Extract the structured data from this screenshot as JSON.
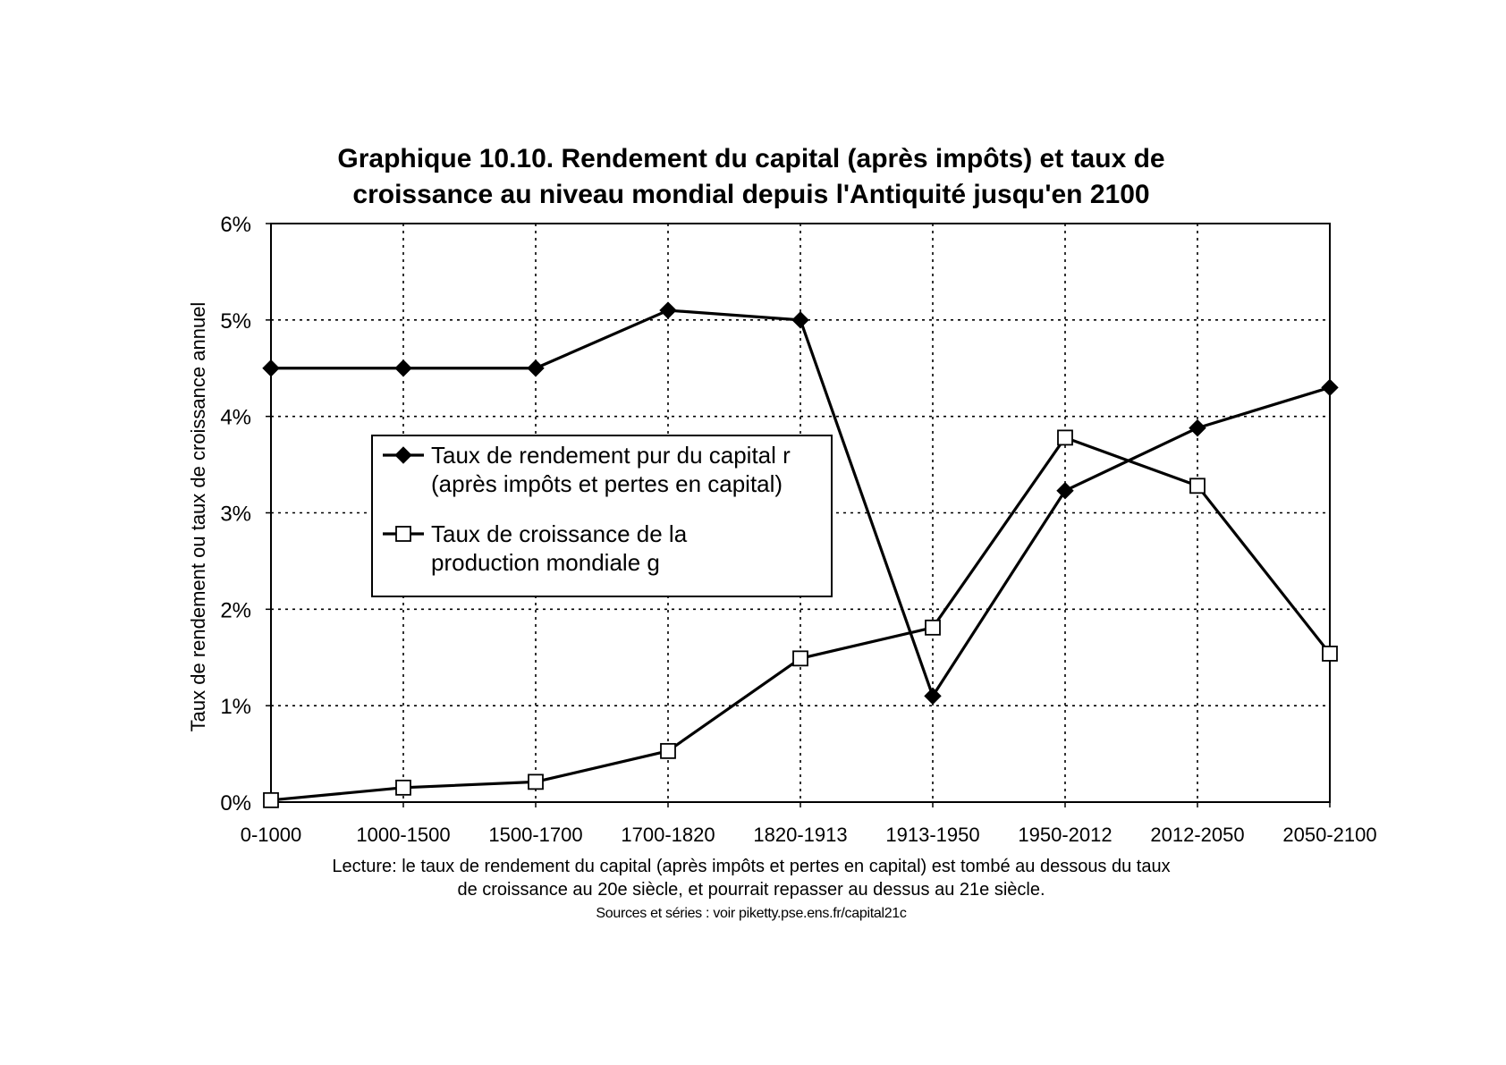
{
  "chart_data": {
    "type": "line",
    "title_line1": "Graphique 10.10. Rendement du capital (après impôts) et taux de",
    "title_line2": "croissance au niveau mondial depuis l'Antiquité jusqu'en 2100",
    "ylabel": "Taux de rendement ou taux de croissance annuel",
    "xlabel": "",
    "categories": [
      "0-1000",
      "1000-1500",
      "1500-1700",
      "1700-1820",
      "1820-1913",
      "1913-1950",
      "1950-2012",
      "2012-2050",
      "2050-2100"
    ],
    "y_ticks": [
      "0%",
      "1%",
      "2%",
      "3%",
      "4%",
      "5%",
      "6%"
    ],
    "ylim": [
      0,
      6
    ],
    "grid": true,
    "legend_position": "center-left",
    "series": [
      {
        "name_line1": "Taux de rendement pur du capital r",
        "name_line2": "(après impôts et pertes en capital)",
        "marker": "filled-diamond",
        "color": "#000000",
        "values": [
          4.5,
          4.5,
          4.5,
          5.1,
          5.0,
          1.1,
          3.23,
          3.88,
          4.3
        ]
      },
      {
        "name_line1": "Taux de croissance de la",
        "name_line2": "production mondiale g",
        "marker": "open-square",
        "color": "#000000",
        "values": [
          0.02,
          0.15,
          0.21,
          0.53,
          1.49,
          1.81,
          3.78,
          3.28,
          1.54
        ]
      }
    ],
    "note_line1": "Lecture: le taux de rendement du capital (après impôts et pertes en capital) est tombé au dessous du taux",
    "note_line2": "de croissance au 20e siècle, et pourrait repasser au dessus au 21e siècle.",
    "source": "Sources et séries : voir piketty.pse.ens.fr/capital21c"
  }
}
